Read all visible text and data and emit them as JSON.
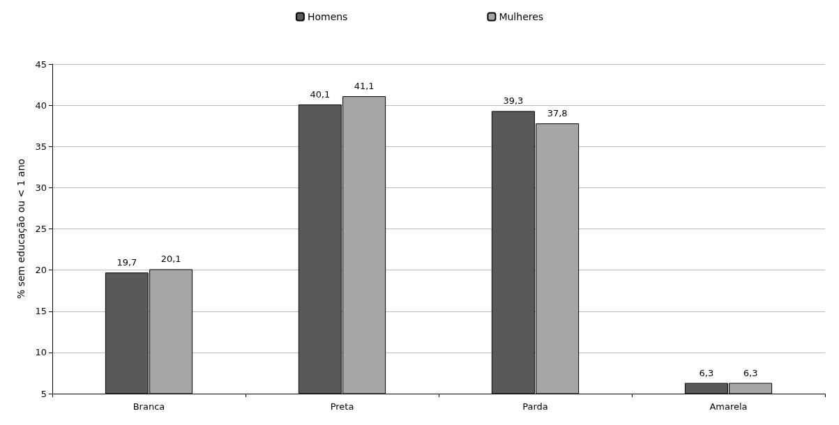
{
  "chart_data": {
    "type": "bar",
    "ylabel": "% sem educação ou < 1 ano",
    "categories": [
      "Branca",
      "Preta",
      "Parda",
      "Amarela"
    ],
    "series": [
      {
        "name": "Homens",
        "color": "#595959",
        "values": [
          19.7,
          40.1,
          39.3,
          6.3
        ],
        "value_labels": [
          "19,7",
          "40,1",
          "39,3",
          "6,3"
        ]
      },
      {
        "name": "Mulheres",
        "color": "#a6a6a6",
        "values": [
          20.1,
          41.1,
          37.8,
          6.3
        ],
        "value_labels": [
          "20,1",
          "41,1",
          "37,8",
          "6,3"
        ]
      }
    ],
    "ylim": [
      5,
      45
    ],
    "yticks": [
      5,
      10,
      15,
      20,
      25,
      30,
      35,
      40,
      45
    ],
    "grid": "y",
    "legend": "top"
  }
}
